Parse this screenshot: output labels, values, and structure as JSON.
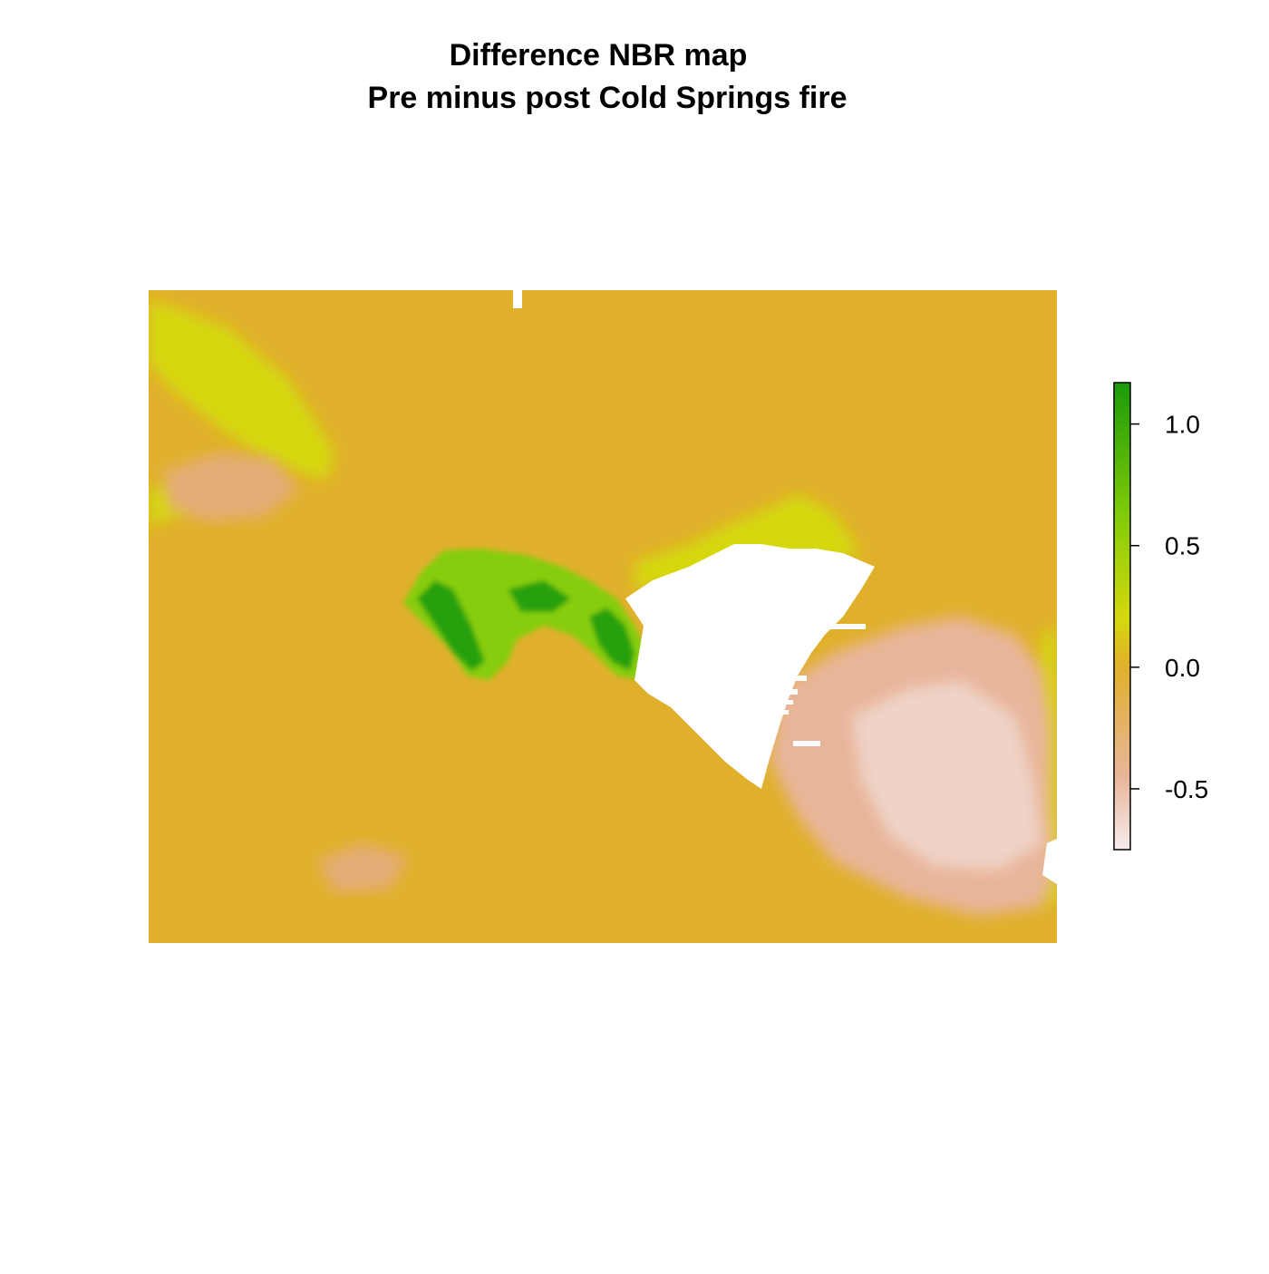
{
  "chart_data": {
    "type": "heatmap",
    "title": "Difference NBR map",
    "subtitle": "Pre minus post Cold Springs fire",
    "xlabel": "",
    "ylabel": "",
    "legend": {
      "placement": "right",
      "range": [
        -0.75,
        1.17
      ],
      "ticks": [
        -0.5,
        0.0,
        0.5,
        1.0
      ],
      "tick_labels": [
        "-0.5",
        "0.0",
        "0.5",
        "1.0"
      ],
      "colors": [
        "#f5ecec",
        "#e8b59a",
        "#e0b02c",
        "#d5d80e",
        "#86cd08",
        "#1a9a0a"
      ],
      "color_stops": [
        -0.75,
        -0.45,
        0.0,
        0.2,
        0.6,
        1.17
      ]
    },
    "background_value": 0.0,
    "background_color": "#e0b02c",
    "nodata_color": "#ffffff",
    "grid": false,
    "regions": [
      {
        "name": "high-dNBR patch (west of fire scar)",
        "value": 1.0,
        "color": "#28a10d"
      },
      {
        "name": "no-data area (cloud mask)",
        "value": null,
        "color": "#ffffff"
      },
      {
        "name": "negative dNBR area (southeast)",
        "value": -0.45,
        "color": "#e8b59a"
      },
      {
        "name": "low-positive dNBR streak (northwest)",
        "value": 0.25,
        "color": "#d5d80e"
      },
      {
        "name": "negative dNBR patch (northwest)",
        "value": -0.2,
        "color": "#e4ad78"
      }
    ]
  }
}
